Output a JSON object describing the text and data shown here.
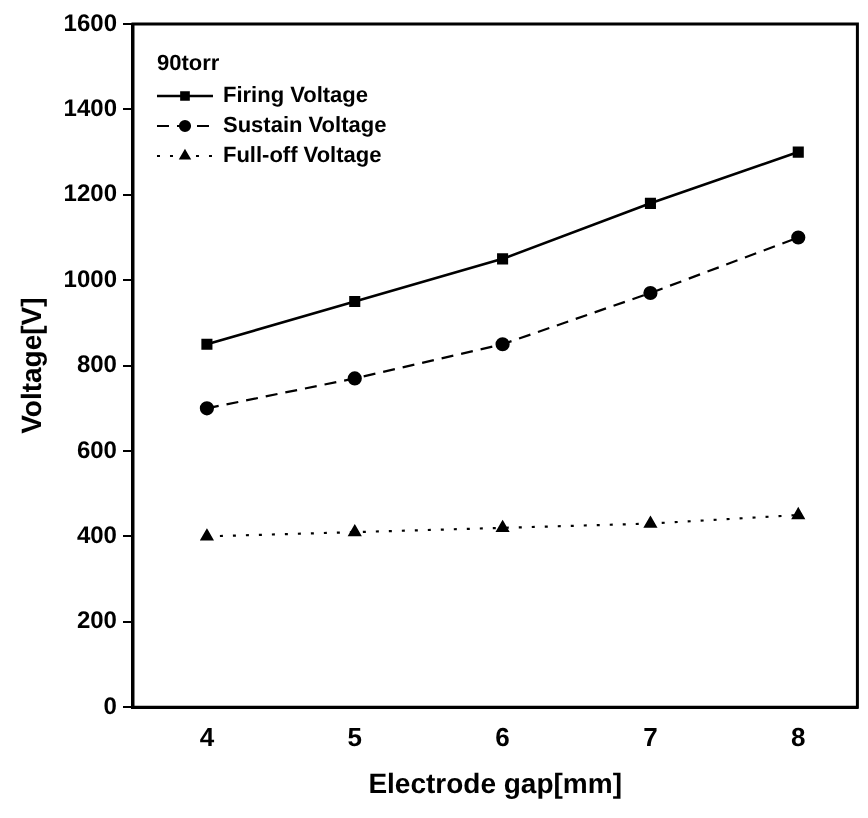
{
  "chart_data": {
    "type": "line",
    "xlabel": "Electrode gap[mm]",
    "ylabel": "Voltage[V]",
    "legend_title": "90torr",
    "legend": "top left",
    "grid": false,
    "x": [
      4,
      5,
      6,
      7,
      8
    ],
    "xlim": [
      3.5,
      8.4
    ],
    "xticks": [
      4,
      5,
      6,
      7,
      8
    ],
    "ylim": [
      0,
      1600
    ],
    "yticks": [
      0,
      200,
      400,
      600,
      800,
      1000,
      1200,
      1400,
      1600
    ],
    "series": [
      {
        "name": "Firing Voltage",
        "color": "#000000",
        "values": [
          850,
          950,
          1050,
          1180,
          1300
        ],
        "marker": "square",
        "line_style": "solid"
      },
      {
        "name": "Sustain Voltage",
        "color": "#000000",
        "values": [
          700,
          770,
          850,
          970,
          1100
        ],
        "marker": "circle",
        "line_style": "dashed"
      },
      {
        "name": "Full-off Voltage",
        "color": "#000000",
        "values": [
          400,
          410,
          420,
          430,
          450
        ],
        "marker": "triangle",
        "line_style": "dotted"
      }
    ]
  }
}
